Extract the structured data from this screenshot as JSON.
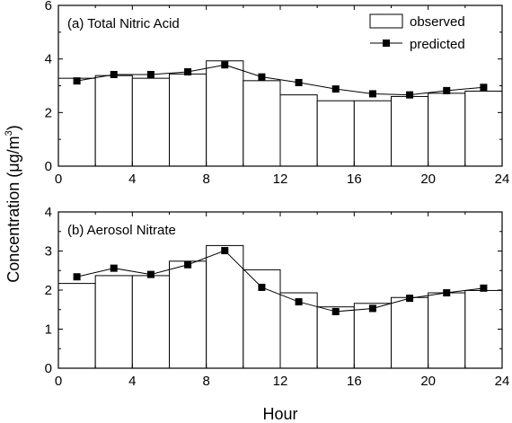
{
  "figure": {
    "ylabel": "Concentration (μg/m³)",
    "ylabel_main": "Concentration (",
    "ylabel_mu": "μ",
    "ylabel_unit": "g/m",
    "ylabel_sup": "3",
    "ylabel_close": ")",
    "xlabel": "Hour"
  },
  "chart_data": [
    {
      "type": "bar",
      "title": "(a) Total Nitric Acid",
      "xlim": [
        0,
        24
      ],
      "ylim": [
        0,
        6
      ],
      "xticks": [
        0,
        4,
        8,
        12,
        16,
        20,
        24
      ],
      "yticks": [
        0,
        2,
        4,
        6
      ],
      "legend": {
        "position": "top-right",
        "entries": [
          "observed",
          "predicted"
        ]
      },
      "series": [
        {
          "name": "observed",
          "type": "bar",
          "bin_edges": [
            0,
            2,
            4,
            6,
            8,
            10,
            12,
            14,
            16,
            18,
            20,
            22,
            24
          ],
          "values": [
            3.28,
            3.38,
            3.28,
            3.44,
            3.93,
            3.19,
            2.66,
            2.44,
            2.44,
            2.6,
            2.72,
            2.8
          ]
        },
        {
          "name": "predicted",
          "type": "line",
          "x": [
            1,
            3,
            5,
            7,
            9,
            11,
            13,
            15,
            17,
            19,
            21,
            23
          ],
          "values": [
            3.18,
            3.42,
            3.42,
            3.52,
            3.78,
            3.33,
            3.12,
            2.88,
            2.7,
            2.66,
            2.82,
            2.94
          ]
        }
      ]
    },
    {
      "type": "bar",
      "title": "(b) Aerosol Nitrate",
      "xlim": [
        0,
        24
      ],
      "ylim": [
        0,
        4
      ],
      "xticks": [
        0,
        4,
        8,
        12,
        16,
        20,
        24
      ],
      "yticks": [
        0,
        1,
        2,
        3,
        4
      ],
      "series": [
        {
          "name": "observed",
          "type": "bar",
          "bin_edges": [
            0,
            2,
            4,
            6,
            8,
            10,
            12,
            14,
            16,
            18,
            20,
            22,
            24
          ],
          "values": [
            2.17,
            2.37,
            2.37,
            2.74,
            3.14,
            2.52,
            1.93,
            1.57,
            1.66,
            1.81,
            1.93,
            1.99
          ]
        },
        {
          "name": "predicted",
          "type": "line",
          "x": [
            1,
            3,
            5,
            7,
            9,
            11,
            13,
            15,
            17,
            19,
            21,
            23
          ],
          "values": [
            2.34,
            2.56,
            2.4,
            2.65,
            3.01,
            2.07,
            1.7,
            1.45,
            1.53,
            1.79,
            1.93,
            2.05
          ]
        }
      ]
    }
  ]
}
